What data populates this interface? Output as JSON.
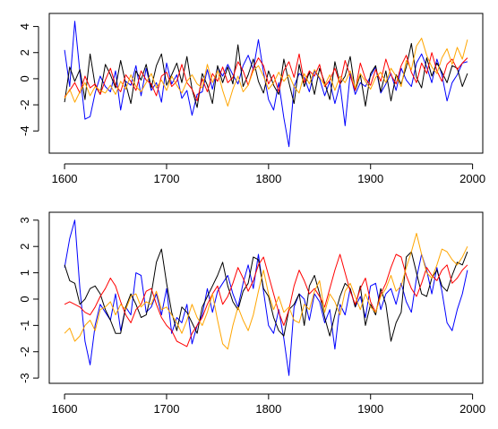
{
  "chart_data": [
    {
      "type": "line",
      "title": "",
      "xlabel": "",
      "ylabel": "",
      "xlim": [
        1585,
        2010
      ],
      "ylim": [
        -5.7,
        5.0
      ],
      "grid": false,
      "legend": "none",
      "x_ticks": [
        "1600",
        "1700",
        "1800",
        "1900",
        "2000"
      ],
      "y_ticks": [
        "-4",
        "-2",
        "0",
        "2",
        "4"
      ],
      "x": [
        1600,
        1605,
        1610,
        1615,
        1620,
        1625,
        1630,
        1635,
        1640,
        1645,
        1650,
        1655,
        1660,
        1665,
        1670,
        1675,
        1680,
        1685,
        1690,
        1695,
        1700,
        1705,
        1710,
        1715,
        1720,
        1725,
        1730,
        1735,
        1740,
        1745,
        1750,
        1755,
        1760,
        1765,
        1770,
        1775,
        1780,
        1785,
        1790,
        1795,
        1800,
        1805,
        1810,
        1815,
        1820,
        1825,
        1830,
        1835,
        1840,
        1845,
        1850,
        1855,
        1860,
        1865,
        1870,
        1875,
        1880,
        1885,
        1890,
        1895,
        1900,
        1905,
        1910,
        1915,
        1920,
        1925,
        1930,
        1935,
        1940,
        1945,
        1950,
        1955,
        1960,
        1965,
        1970,
        1975,
        1980,
        1985,
        1990,
        1995
      ],
      "series": [
        {
          "color": "#0000FF",
          "values": [
            2.2,
            -0.6,
            4.4,
            0.5,
            -3.1,
            -2.9,
            -1.1,
            0.2,
            -0.6,
            -1.0,
            0.6,
            -2.4,
            -0.2,
            -0.5,
            1.0,
            -1.3,
            0.8,
            -0.9,
            -0.3,
            -1.8,
            1.2,
            -0.4,
            0.3,
            -1.5,
            -0.9,
            -2.8,
            -1.2,
            -1.0,
            0.7,
            -0.8,
            0.9,
            0.2,
            1.1,
            0.3,
            -0.4,
            1.0,
            1.8,
            0.7,
            3.0,
            0.5,
            -1.6,
            -2.4,
            -0.3,
            -3.0,
            -5.2,
            -0.6,
            0.4,
            0.1,
            -1.0,
            0.6,
            0.0,
            -1.3,
            -0.2,
            -1.9,
            -0.4,
            -3.6,
            0.4,
            -1.2,
            -0.3,
            -0.6,
            0.2,
            0.9,
            -1.1,
            -0.4,
            0.4,
            -0.9,
            0.8,
            -0.1,
            -0.6,
            1.2,
            1.9,
            0.9,
            -0.3,
            1.5,
            0.3,
            -1.7,
            -0.3,
            0.3,
            1.2,
            1.3
          ]
        },
        {
          "color": "#000000",
          "values": [
            -1.8,
            0.9,
            -0.2,
            0.7,
            -1.6,
            1.9,
            -0.5,
            -1.2,
            1.1,
            0.3,
            -0.7,
            1.4,
            -0.4,
            -1.9,
            0.6,
            -0.1,
            1.1,
            -0.7,
            1.0,
            1.9,
            -0.5,
            0.3,
            1.2,
            -0.3,
            1.7,
            -0.8,
            -2.2,
            0.4,
            -0.5,
            -1.9,
            1.0,
            -0.3,
            0.9,
            -0.4,
            2.6,
            -0.6,
            0.3,
            1.5,
            -0.2,
            -1.1,
            0.6,
            -0.5,
            -1.2,
            1.5,
            -0.3,
            -1.9,
            1.1,
            -0.6,
            0.5,
            -1.2,
            0.8,
            -0.3,
            -1.6,
            1.3,
            -0.4,
            0.2,
            1.7,
            -0.9,
            0.3,
            -2.1,
            0.4,
            1.0,
            -1.0,
            0.6,
            -1.7,
            0.3,
            -0.4,
            0.9,
            2.7,
            0.1,
            -0.7,
            1.6,
            0.2,
            1.2,
            0.5,
            -0.3,
            1.0,
            0.8,
            -0.6,
            0.4
          ]
        },
        {
          "color": "#FF0000",
          "values": [
            -1.4,
            -0.9,
            -0.3,
            -1.1,
            0.2,
            -0.7,
            -0.4,
            -1.2,
            -0.1,
            0.8,
            -0.5,
            -1.0,
            0.3,
            -0.2,
            -0.9,
            0.6,
            -0.1,
            -0.4,
            -1.3,
            0.2,
            0.5,
            -0.6,
            -0.2,
            1.1,
            -0.3,
            -0.8,
            -1.7,
            0.0,
            -1.0,
            0.4,
            -0.2,
            0.9,
            -0.3,
            0.1,
            1.3,
            0.6,
            -0.5,
            0.8,
            1.6,
            1.0,
            -0.4,
            0.3,
            -1.0,
            0.6,
            1.3,
            0.1,
            1.9,
            -0.3,
            0.6,
            0.2,
            1.1,
            -0.6,
            -0.1,
            0.8,
            -0.4,
            1.4,
            0.2,
            -0.9,
            1.2,
            0.0,
            -0.5,
            0.7,
            -0.2,
            1.5,
            0.3,
            -0.4,
            1.0,
            1.8,
            0.5,
            -0.3,
            1.2,
            0.4,
            2.0,
            0.6,
            -0.2,
            1.1,
            1.5,
            0.7,
            1.2,
            1.6
          ]
        },
        {
          "color": "#FFA500",
          "values": [
            -1.5,
            -0.8,
            -1.8,
            -1.0,
            -0.3,
            -1.3,
            -0.6,
            -0.9,
            -1.1,
            -0.5,
            -1.2,
            -0.2,
            -0.8,
            0.3,
            -0.6,
            -1.0,
            -0.3,
            0.4,
            -0.7,
            -0.1,
            -0.9,
            0.2,
            -0.5,
            -1.1,
            -0.2,
            0.3,
            -0.4,
            -0.7,
            1.1,
            -0.3,
            0.6,
            -0.9,
            -2.1,
            -0.8,
            0.2,
            -1.0,
            -0.5,
            0.6,
            1.0,
            0.2,
            -0.8,
            -0.3,
            0.5,
            -0.2,
            0.3,
            -0.6,
            -1.1,
            0.4,
            -0.4,
            0.7,
            0.1,
            -0.5,
            0.3,
            -0.9,
            0.2,
            -0.3,
            0.6,
            -0.7,
            0.4,
            -0.2,
            -0.8,
            0.1,
            0.5,
            -0.3,
            0.8,
            0.2,
            -0.6,
            1.4,
            0.7,
            2.5,
            3.1,
            1.8,
            0.9,
            0.4,
            1.6,
            2.3,
            1.1,
            2.4,
            1.5,
            3.0
          ]
        }
      ]
    },
    {
      "type": "line",
      "title": "",
      "xlabel": "",
      "ylabel": "",
      "xlim": [
        1585,
        2010
      ],
      "ylim": [
        -3.2,
        3.3
      ],
      "grid": false,
      "legend": "none",
      "x_ticks": [
        "1600",
        "1700",
        "1800",
        "1900",
        "2000"
      ],
      "y_ticks": [
        "-3",
        "-2",
        "-1",
        "0",
        "1",
        "2",
        "3"
      ],
      "x": [
        1600,
        1605,
        1610,
        1615,
        1620,
        1625,
        1630,
        1635,
        1640,
        1645,
        1650,
        1655,
        1660,
        1665,
        1670,
        1675,
        1680,
        1685,
        1690,
        1695,
        1700,
        1705,
        1710,
        1715,
        1720,
        1725,
        1730,
        1735,
        1740,
        1745,
        1750,
        1755,
        1760,
        1765,
        1770,
        1775,
        1780,
        1785,
        1790,
        1795,
        1800,
        1805,
        1810,
        1815,
        1820,
        1825,
        1830,
        1835,
        1840,
        1845,
        1850,
        1855,
        1860,
        1865,
        1870,
        1875,
        1880,
        1885,
        1890,
        1895,
        1900,
        1905,
        1910,
        1915,
        1920,
        1925,
        1930,
        1935,
        1940,
        1945,
        1950,
        1955,
        1960,
        1965,
        1970,
        1975,
        1980,
        1985,
        1990,
        1995
      ],
      "series": [
        {
          "color": "#0000FF",
          "values": [
            1.2,
            2.3,
            3.0,
            0.4,
            -1.6,
            -2.5,
            -1.0,
            -0.2,
            -0.5,
            -0.8,
            0.2,
            -1.2,
            -0.3,
            -0.6,
            1.0,
            0.9,
            -0.5,
            -0.3,
            0.2,
            -0.6,
            0.4,
            -1.3,
            -0.7,
            -0.9,
            -0.2,
            -1.7,
            -1.0,
            -0.6,
            0.4,
            -0.5,
            0.3,
            0.6,
            0.9,
            0.2,
            -0.3,
            0.6,
            1.3,
            0.4,
            1.7,
            0.3,
            -1.0,
            -1.3,
            -0.4,
            -1.5,
            -2.9,
            -0.3,
            0.2,
            0.0,
            -0.8,
            0.2,
            -0.1,
            -0.9,
            -0.4,
            -1.9,
            -0.2,
            -0.6,
            0.4,
            -0.3,
            0.1,
            -0.7,
            0.5,
            0.6,
            -0.4,
            0.2,
            0.4,
            -0.2,
            0.6,
            -0.1,
            -0.5,
            0.8,
            1.7,
            1.1,
            0.2,
            1.2,
            0.3,
            -0.9,
            -1.2,
            -0.4,
            0.2,
            1.1
          ]
        },
        {
          "color": "#000000",
          "values": [
            1.3,
            0.7,
            0.6,
            -0.2,
            0.0,
            0.4,
            0.5,
            0.2,
            -0.4,
            -0.8,
            -1.3,
            -1.3,
            -0.3,
            0.2,
            -0.2,
            -0.7,
            -0.6,
            0.2,
            1.4,
            1.9,
            0.6,
            -0.5,
            -1.2,
            -0.3,
            -0.5,
            -0.9,
            -1.3,
            -0.3,
            0.1,
            0.5,
            0.9,
            1.4,
            0.5,
            -0.1,
            -0.4,
            0.3,
            0.6,
            1.6,
            1.5,
            0.4,
            0.1,
            -0.7,
            -1.2,
            -1.4,
            -0.4,
            -0.2,
            0.2,
            -1.0,
            0.5,
            0.9,
            0.2,
            -0.7,
            -1.4,
            -0.6,
            0.1,
            0.6,
            0.4,
            -0.3,
            0.5,
            -1.0,
            -0.2,
            -0.6,
            0.4,
            -0.2,
            -1.6,
            -0.9,
            -0.5,
            1.6,
            1.8,
            1.0,
            0.2,
            0.1,
            0.8,
            1.1,
            0.5,
            0.3,
            0.9,
            1.4,
            1.3,
            1.8
          ]
        },
        {
          "color": "#FF0000",
          "values": [
            -0.2,
            -0.1,
            -0.2,
            -0.3,
            -0.5,
            -0.6,
            -0.3,
            0.1,
            0.4,
            0.8,
            0.5,
            -0.1,
            -0.6,
            -0.9,
            -0.4,
            -0.2,
            0.3,
            0.4,
            -0.2,
            -0.7,
            -1.0,
            -1.2,
            -1.6,
            -1.7,
            -1.8,
            -1.3,
            -1.0,
            -0.7,
            -0.2,
            0.2,
            0.5,
            -0.2,
            0.1,
            0.6,
            1.2,
            0.8,
            0.3,
            0.7,
            1.3,
            1.6,
            0.9,
            0.2,
            -0.5,
            -1.0,
            -0.4,
            0.5,
            1.1,
            0.7,
            0.2,
            0.4,
            0.1,
            -0.3,
            0.4,
            1.1,
            1.7,
            1.0,
            0.3,
            -0.2,
            0.4,
            0.8,
            -0.1,
            -0.5,
            0.2,
            0.6,
            1.2,
            1.7,
            1.6,
            0.9,
            0.4,
            0.1,
            0.6,
            1.2,
            0.9,
            0.7,
            1.1,
            1.3,
            0.6,
            0.8,
            1.1,
            1.3
          ]
        },
        {
          "color": "#FFA500",
          "values": [
            -1.3,
            -1.1,
            -1.6,
            -1.4,
            -1.0,
            -0.8,
            -1.2,
            -0.4,
            -0.3,
            -0.1,
            -0.6,
            -0.2,
            -0.4,
            0.1,
            0.2,
            -0.3,
            -0.1,
            -0.2,
            0.3,
            -0.4,
            -0.3,
            -0.6,
            -0.9,
            -1.3,
            -0.8,
            -0.2,
            -0.7,
            -1.0,
            -0.5,
            0.2,
            -0.8,
            -1.7,
            -1.9,
            -1.0,
            -0.3,
            -0.8,
            -1.2,
            -0.6,
            0.3,
            1.1,
            0.2,
            -0.4,
            0.1,
            -0.5,
            -0.3,
            -0.8,
            -0.9,
            -0.2,
            -0.4,
            0.3,
            0.7,
            -0.5,
            0.2,
            -0.1,
            -0.6,
            0.3,
            0.6,
            0.1,
            -0.4,
            0.2,
            -0.3,
            -0.5,
            0.1,
            0.4,
            0.9,
            0.3,
            0.5,
            1.2,
            1.8,
            2.5,
            1.7,
            1.0,
            0.8,
            1.3,
            1.9,
            1.8,
            1.5,
            1.3,
            1.6,
            2.0
          ]
        }
      ]
    }
  ]
}
